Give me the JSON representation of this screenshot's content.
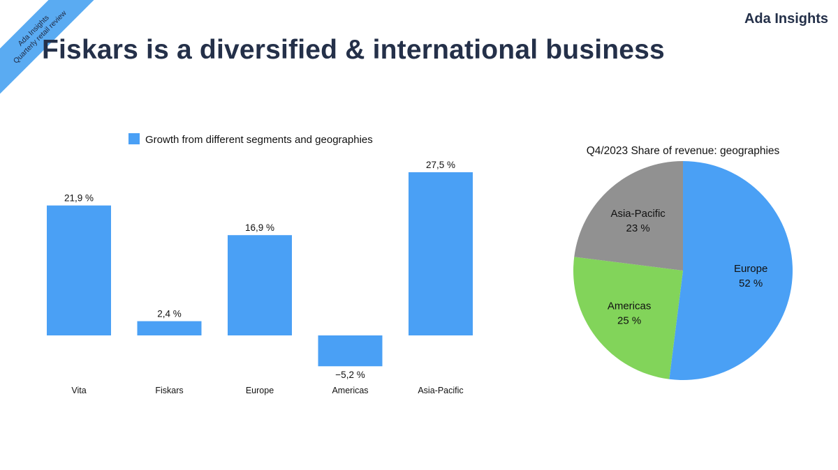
{
  "header": {
    "ribbon_line1": "Ada Insights",
    "ribbon_line2": "Quarterly retail review",
    "brand": "Ada Insights",
    "title": "Fiskars is a diversified & international business"
  },
  "colors": {
    "bar": "#4aa0f5",
    "pie_europe": "#4aa0f5",
    "pie_americas": "#82d45a",
    "pie_asia": "#919191"
  },
  "chart_data": [
    {
      "type": "bar",
      "title": "",
      "legend": "Growth from different segments and geographies",
      "legend_position": "top",
      "categories": [
        "Vita",
        "Fiskars",
        "Europe",
        "Americas",
        "Asia-Pacific"
      ],
      "values": [
        21.9,
        2.4,
        16.9,
        -5.2,
        27.5
      ],
      "data_labels": [
        "21,9 %",
        "2,4 %",
        "16,9 %",
        "−5,2 %",
        "27,5 %"
      ],
      "xlabel": "",
      "ylabel": "",
      "ylim": [
        -5.2,
        27.5
      ],
      "grid": false
    },
    {
      "type": "pie",
      "title": "Q4/2023 Share of revenue: geographies",
      "slices": [
        {
          "name": "Europe",
          "value": 52,
          "label": "52 %"
        },
        {
          "name": "Americas",
          "value": 25,
          "label": "25 %"
        },
        {
          "name": "Asia-Pacific",
          "value": 23,
          "label": "23 %"
        }
      ]
    }
  ]
}
